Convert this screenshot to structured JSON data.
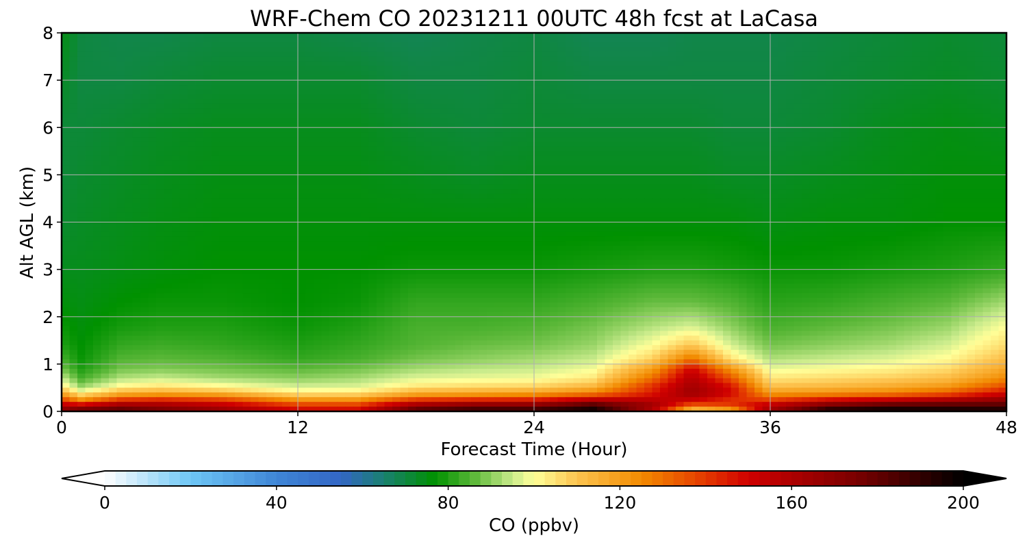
{
  "chart_data": {
    "type": "heatmap",
    "title": "WRF-Chem CO  20231211 00UTC 48h fcst at LaCasa",
    "xlabel": "Forecast Time (Hour)",
    "ylabel": "Alt AGL (km)",
    "xlim": [
      0,
      48
    ],
    "ylim": [
      0,
      8
    ],
    "xticks": [
      0,
      12,
      24,
      36,
      48
    ],
    "xtick_labels": [
      "0",
      "12",
      "24",
      "36",
      "48"
    ],
    "yticks": [
      0,
      1,
      2,
      3,
      4,
      5,
      6,
      7,
      8
    ],
    "ytick_labels": [
      "0",
      "1",
      "2",
      "3",
      "4",
      "5",
      "6",
      "7",
      "8"
    ],
    "grid": true,
    "colorbar": {
      "label": "CO  (ppbv)",
      "range": [
        0,
        200
      ],
      "ticks": [
        0,
        40,
        80,
        120,
        160,
        200
      ],
      "tick_labels": [
        "0",
        "40",
        "80",
        "120",
        "160",
        "200"
      ],
      "extend": "both",
      "colors": [
        {
          "v": 0,
          "c": "#ffffff"
        },
        {
          "v": 20,
          "c": "#6ec6f5"
        },
        {
          "v": 40,
          "c": "#3f86d6"
        },
        {
          "v": 55,
          "c": "#3366c4"
        },
        {
          "v": 65,
          "c": "#1a8070"
        },
        {
          "v": 77,
          "c": "#009100"
        },
        {
          "v": 86,
          "c": "#5cb839"
        },
        {
          "v": 95,
          "c": "#c9eb8c"
        },
        {
          "v": 100,
          "c": "#ffff99"
        },
        {
          "v": 110,
          "c": "#fdc450"
        },
        {
          "v": 125,
          "c": "#f28a00"
        },
        {
          "v": 140,
          "c": "#e43800"
        },
        {
          "v": 150,
          "c": "#cf0000"
        },
        {
          "v": 175,
          "c": "#7a0000"
        },
        {
          "v": 200,
          "c": "#000000"
        }
      ]
    },
    "time_hours": [
      0,
      1,
      3,
      5,
      8,
      12,
      15,
      18,
      21,
      24,
      27,
      30,
      32,
      34,
      36,
      39,
      42,
      45,
      48
    ],
    "altitudes_km": [
      0,
      0.1,
      0.2,
      0.3,
      0.4,
      0.55,
      0.7,
      0.9,
      1.1,
      1.4,
      1.8,
      2.3,
      3,
      4,
      5,
      6,
      7,
      8
    ],
    "values": [
      [
        175,
        182,
        185,
        178,
        168,
        150,
        150,
        188,
        192,
        192,
        198,
        155,
        100,
        105,
        165,
        200,
        200,
        200,
        200
      ],
      [
        160,
        165,
        172,
        168,
        160,
        145,
        145,
        170,
        178,
        178,
        192,
        165,
        130,
        140,
        160,
        180,
        190,
        188,
        185
      ],
      [
        145,
        130,
        150,
        152,
        145,
        128,
        128,
        150,
        155,
        155,
        168,
        160,
        145,
        140,
        145,
        160,
        165,
        170,
        175
      ],
      [
        128,
        115,
        128,
        132,
        130,
        115,
        115,
        128,
        130,
        133,
        142,
        150,
        160,
        145,
        130,
        135,
        140,
        148,
        160
      ],
      [
        115,
        100,
        113,
        115,
        112,
        102,
        103,
        114,
        116,
        118,
        125,
        145,
        165,
        150,
        120,
        122,
        125,
        132,
        148
      ],
      [
        102,
        90,
        100,
        103,
        100,
        95,
        96,
        103,
        105,
        106,
        112,
        140,
        162,
        145,
        110,
        112,
        115,
        120,
        135
      ],
      [
        95,
        84,
        93,
        95,
        92,
        90,
        92,
        97,
        98,
        99,
        104,
        130,
        158,
        135,
        104,
        106,
        108,
        112,
        125
      ],
      [
        88,
        80,
        88,
        89,
        88,
        86,
        88,
        92,
        94,
        95,
        99,
        120,
        150,
        122,
        98,
        100,
        102,
        106,
        118
      ],
      [
        84,
        78,
        85,
        86,
        85,
        82,
        84,
        88,
        90,
        92,
        95,
        108,
        130,
        105,
        93,
        95,
        97,
        101,
        112
      ],
      [
        80,
        77,
        82,
        83,
        82,
        80,
        82,
        85,
        87,
        88,
        91,
        100,
        110,
        96,
        88,
        90,
        92,
        96,
        106
      ],
      [
        78,
        76,
        79,
        80,
        80,
        78,
        80,
        84,
        84,
        85,
        88,
        93,
        96,
        90,
        84,
        86,
        88,
        91,
        100
      ],
      [
        76,
        75,
        77,
        78,
        78,
        77,
        78,
        82,
        82,
        82,
        84,
        87,
        87,
        85,
        81,
        82,
        84,
        86,
        92
      ],
      [
        74,
        74,
        75,
        76,
        77,
        77,
        77,
        78,
        78,
        78,
        79,
        80,
        80,
        79,
        78,
        78,
        79,
        80,
        82
      ],
      [
        72,
        73,
        74,
        75,
        76,
        76,
        76,
        76,
        76,
        76,
        76,
        76,
        76,
        76,
        75,
        76,
        76,
        77,
        77
      ],
      [
        71,
        72,
        73,
        74,
        75,
        75,
        75,
        74,
        73,
        74,
        74,
        74,
        74,
        73,
        73,
        74,
        75,
        76,
        76
      ],
      [
        71,
        71,
        72,
        73,
        74,
        74,
        74,
        72,
        71,
        72,
        72,
        72,
        72,
        71,
        71,
        72,
        74,
        75,
        74
      ],
      [
        73,
        70,
        70,
        71,
        72,
        72,
        72,
        70,
        70,
        71,
        70,
        70,
        70,
        70,
        70,
        71,
        72,
        73,
        72
      ],
      [
        75,
        70,
        69,
        69,
        70,
        70,
        69,
        68,
        69,
        70,
        68,
        68,
        69,
        69,
        69,
        70,
        71,
        72,
        71
      ]
    ]
  }
}
